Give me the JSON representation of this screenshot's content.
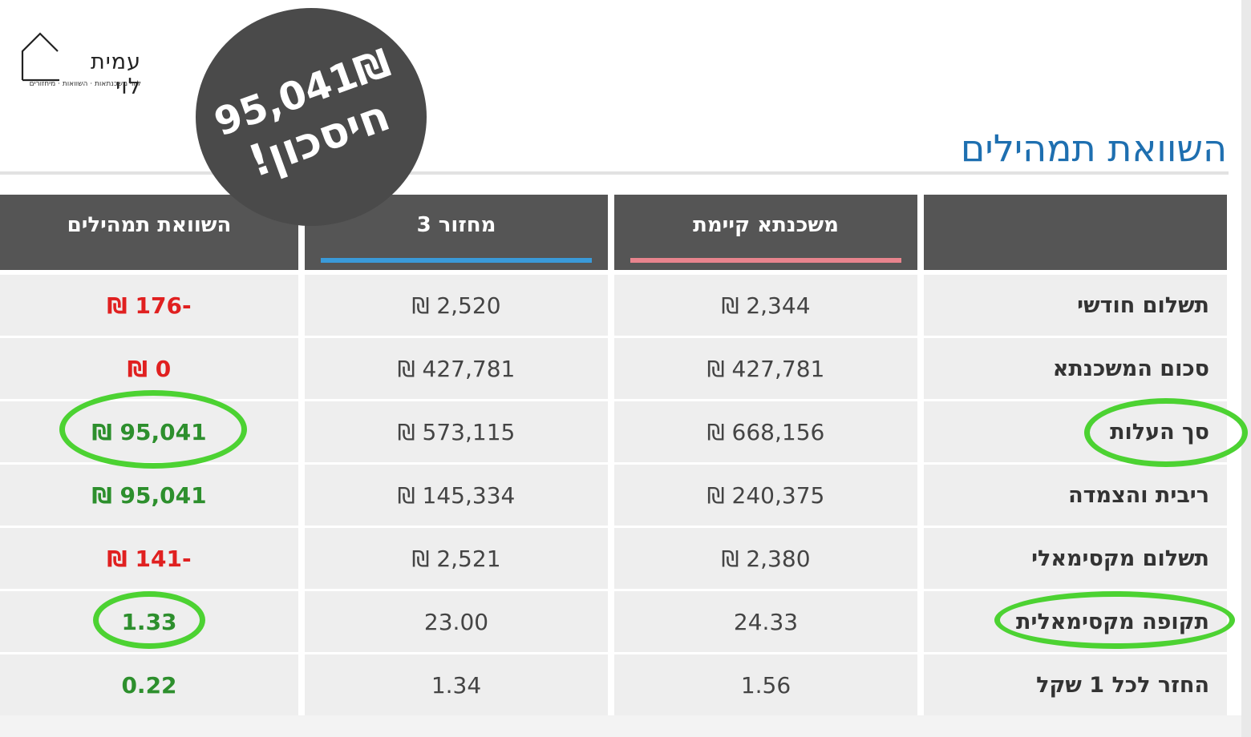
{
  "logo": {
    "name": "עמית לוי",
    "tagline": "ליווי משכנתאות · השוואות · מיחזורים"
  },
  "badge": {
    "line1": "95,041₪",
    "line2": "חיסכון!"
  },
  "page_title": "השוואת תמהילים",
  "table": {
    "headers": {
      "existing": "משכנתא קיימת",
      "refinance": "מחזור 3",
      "comparison": "השוואת תמהילים"
    },
    "header_colors": {
      "existing_bar": "#e8848d",
      "refinance_bar": "#3a9ad9"
    },
    "rows": [
      {
        "label": "תשלום חודשי",
        "existing": "2,344 ₪",
        "refinance": "2,520 ₪",
        "comparison": "-176 ₪",
        "tone": "neg"
      },
      {
        "label": "סכום המשכנתא",
        "existing": "427,781 ₪",
        "refinance": "427,781 ₪",
        "comparison": "0 ₪",
        "tone": "neg"
      },
      {
        "label": "סך העלות",
        "existing": "668,156 ₪",
        "refinance": "573,115 ₪",
        "comparison": "95,041 ₪",
        "tone": "pos"
      },
      {
        "label": "ריבית והצמדה",
        "existing": "240,375 ₪",
        "refinance": "145,334 ₪",
        "comparison": "95,041 ₪",
        "tone": "pos"
      },
      {
        "label": "תשלום מקסימאלי",
        "existing": "2,380 ₪",
        "refinance": "2,521 ₪",
        "comparison": "-141 ₪",
        "tone": "neg"
      },
      {
        "label": "תקופה מקסימאלית",
        "existing": "24.33",
        "refinance": "23.00",
        "comparison": "1.33",
        "tone": "pos"
      },
      {
        "label": "החזר לכל 1 שקל",
        "existing": "1.56",
        "refinance": "1.34",
        "comparison": "0.22",
        "tone": "pos"
      }
    ]
  },
  "colors": {
    "title_blue": "#1e6fb0",
    "header_gray": "#555555",
    "negative": "#e02020",
    "positive": "#2d8f2d",
    "highlight_ring": "#4cd232"
  }
}
